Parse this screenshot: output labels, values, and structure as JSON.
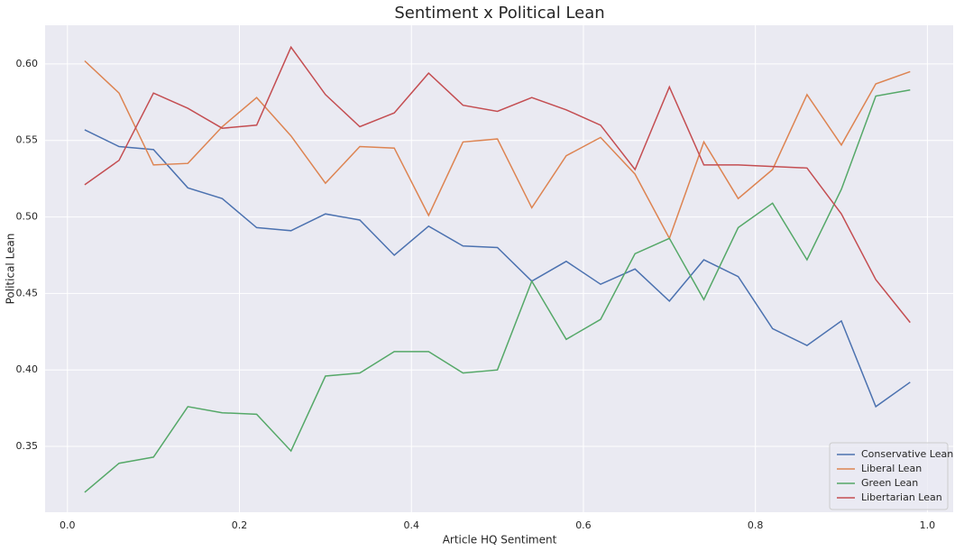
{
  "chart_data": {
    "type": "line",
    "title": "Sentiment x Political Lean",
    "x_label": "Article HQ Sentiment",
    "y_label": "Political Lean",
    "x": [
      0.02,
      0.06,
      0.1,
      0.14,
      0.18,
      0.22,
      0.26,
      0.3,
      0.34,
      0.38,
      0.42,
      0.46,
      0.5,
      0.54,
      0.58,
      0.62,
      0.66,
      0.7,
      0.74,
      0.78,
      0.82,
      0.86,
      0.9,
      0.94,
      0.98
    ],
    "series": [
      {
        "name": "Conservative Lean",
        "color": "#4c72b0",
        "values": [
          0.557,
          0.546,
          0.544,
          0.519,
          0.512,
          0.493,
          0.491,
          0.502,
          0.498,
          0.475,
          0.494,
          0.481,
          0.48,
          0.458,
          0.471,
          0.456,
          0.466,
          0.445,
          0.472,
          0.461,
          0.427,
          0.416,
          0.432,
          0.376,
          0.392
        ]
      },
      {
        "name": "Liberal Lean",
        "color": "#dd8452",
        "values": [
          0.602,
          0.581,
          0.534,
          0.535,
          0.559,
          0.578,
          0.553,
          0.522,
          0.546,
          0.545,
          0.501,
          0.549,
          0.551,
          0.506,
          0.54,
          0.552,
          0.528,
          0.486,
          0.549,
          0.512,
          0.531,
          0.58,
          0.547,
          0.587,
          0.595
        ]
      },
      {
        "name": "Green Lean",
        "color": "#55a868",
        "values": [
          0.32,
          0.339,
          0.343,
          0.376,
          0.372,
          0.371,
          0.347,
          0.396,
          0.398,
          0.412,
          0.412,
          0.398,
          0.4,
          0.458,
          0.42,
          0.433,
          0.476,
          0.486,
          0.446,
          0.493,
          0.509,
          0.472,
          0.518,
          0.579,
          0.583
        ]
      },
      {
        "name": "Libertarian Lean",
        "color": "#c44e52",
        "values": [
          0.521,
          0.537,
          0.581,
          0.571,
          0.558,
          0.56,
          0.611,
          0.58,
          0.559,
          0.568,
          0.594,
          0.573,
          0.569,
          0.578,
          0.57,
          0.56,
          0.531,
          0.585,
          0.534,
          0.534,
          0.533,
          0.532,
          0.502,
          0.459,
          0.431
        ]
      }
    ],
    "xlim": [
      -0.026,
      1.03
    ],
    "ylim": [
      0.307,
      0.6253
    ],
    "xticks": [
      {
        "value": 0,
        "label": "0.0"
      },
      0.2,
      0.4,
      0.6,
      0.8,
      {
        "value": 1,
        "label": "1.0"
      }
    ],
    "yticks": [
      0.35,
      {
        "value": 0.4,
        "label": "0.40"
      },
      0.45,
      {
        "value": 0.5,
        "label": "0.50"
      },
      0.55,
      {
        "value": 0.6,
        "label": "0.60"
      }
    ],
    "grid": true,
    "legend": "lower right"
  }
}
